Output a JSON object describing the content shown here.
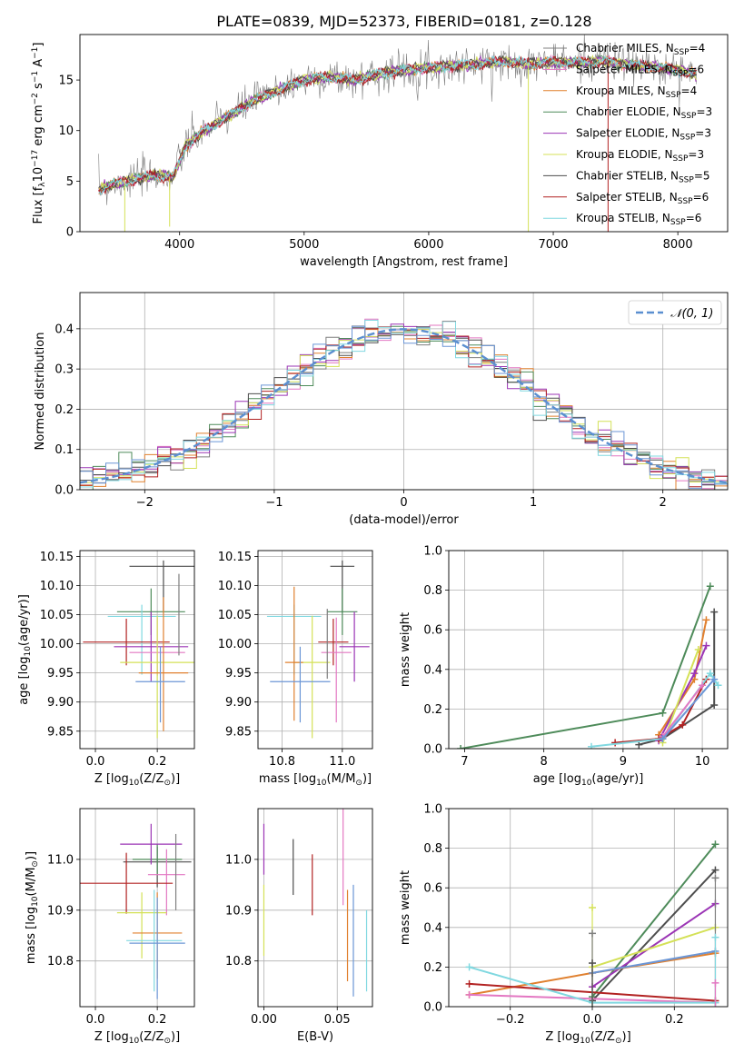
{
  "figure": {
    "title": "PLATE=0839, MJD=52373, FIBERID=0181, z=0.128"
  },
  "colors": {
    "Chabrier MILES": "#7f7f7f",
    "Salpeter MILES": "#e377c2",
    "Kroupa MILES": "#e0802f",
    "Chabrier ELODIE": "#4e8b5a",
    "Salpeter ELODIE": "#9b35b5",
    "Kroupa ELODIE": "#d4e157",
    "Chabrier STELIB": "#4d4d4d",
    "Salpeter STELIB": "#b22222",
    "Kroupa STELIB": "#80d8e0",
    "Chabrier MILES b": "#6b96d6"
  },
  "chart_data": [
    {
      "id": "spectrum",
      "type": "line",
      "title": "PLATE=0839, MJD=52373, FIBERID=0181, z=0.128",
      "xlabel": "wavelength [Angstrom, rest frame]",
      "ylabel": "Flux [f",
      "ylabel_sub": "λ",
      "ylabel_rest": "10",
      "ylabel_exp": "−17",
      "ylabel_tail": " erg cm",
      "ylabel_exp2": "−2",
      "ylabel_tail2": " s",
      "ylabel_exp3": "−1",
      "ylabel_tail3": " A",
      "ylabel_exp4": "−1",
      "ylabel_end": "]",
      "xlim": [
        3200,
        8400
      ],
      "ylim": [
        0,
        19.5
      ],
      "xticks": [
        4000,
        5000,
        6000,
        7000,
        8000
      ],
      "yticks": [
        0,
        5,
        10,
        15
      ],
      "legend_position": "right",
      "legend": [
        {
          "name": "Chabrier MILES",
          "n": "4",
          "color": "#7f7f7f"
        },
        {
          "name": "Salpeter MILES",
          "n": "6",
          "color": "#e377c2"
        },
        {
          "name": "Kroupa MILES",
          "n": "4",
          "color": "#e0802f"
        },
        {
          "name": "Chabrier ELODIE",
          "n": "3",
          "color": "#4e8b5a"
        },
        {
          "name": "Salpeter ELODIE",
          "n": "3",
          "color": "#9b35b5"
        },
        {
          "name": "Kroupa ELODIE",
          "n": "3",
          "color": "#d4e157"
        },
        {
          "name": "Chabrier STELIB",
          "n": "5",
          "color": "#4d4d4d"
        },
        {
          "name": "Salpeter STELIB",
          "n": "6",
          "color": "#b22222"
        },
        {
          "name": "Kroupa STELIB",
          "n": "6",
          "color": "#80d8e0"
        }
      ],
      "nssp_label": "N",
      "nssp_sub": "SSP",
      "continuum": {
        "x": [
          3350,
          3500,
          3650,
          3800,
          3950,
          4050,
          4200,
          4400,
          4600,
          4800,
          5000,
          5200,
          5400,
          5600,
          5800,
          6000,
          6200,
          6400,
          6600,
          6800,
          7000,
          7200,
          7400,
          7600,
          7800,
          8000,
          8150
        ],
        "y": [
          4.2,
          4.8,
          5.2,
          5.6,
          5.4,
          8.5,
          10.0,
          11.5,
          13.0,
          14.0,
          15.0,
          15.3,
          15.0,
          15.6,
          16.0,
          16.2,
          16.4,
          16.6,
          16.8,
          16.6,
          16.8,
          16.7,
          16.9,
          16.5,
          16.3,
          16.0,
          15.5
        ]
      },
      "drops": [
        {
          "x": 3560,
          "y": 0
        },
        {
          "x": 3920,
          "y": 0.5
        },
        {
          "x": 6800,
          "y": 0
        },
        {
          "x": 7440,
          "y": 0
        }
      ]
    },
    {
      "id": "residuals",
      "type": "line",
      "xlabel": "(data-model)/error",
      "ylabel": "Normed distribution",
      "xlim": [
        -2.5,
        2.5
      ],
      "ylim": [
        0,
        0.49
      ],
      "xticks": [
        -2,
        -1,
        0,
        1,
        2
      ],
      "xtick_labels": [
        "−2",
        "−1",
        "0",
        "1",
        "2"
      ],
      "yticks": [
        0.0,
        0.1,
        0.2,
        0.3,
        0.4
      ],
      "ytick_labels": [
        "0.0",
        "0.1",
        "0.2",
        "0.3",
        "0.4"
      ],
      "legend_label": "𝒩(0, 1)",
      "legend_position": "top-right",
      "gaussian": {
        "mean": 0,
        "sigma": 1,
        "color": "#5b8fd0"
      },
      "hist_bin_width": 0.1,
      "hist_series_colors": [
        "#7f7f7f",
        "#e377c2",
        "#e0802f",
        "#4e8b5a",
        "#9b35b5",
        "#d4e157",
        "#4d4d4d",
        "#b22222",
        "#80d8e0",
        "#6b96d6"
      ]
    },
    {
      "id": "age_vs_Z",
      "type": "scatter",
      "xlabel": "Z [log",
      "xlabel_sub": "10",
      "xlabel_rest": "(Z/Z",
      "xlabel_sub2": "⊙",
      "xlabel_end": ")]",
      "ylabel": "age  [log",
      "ylabel_sub": "10",
      "ylabel_rest": "(age/yr)]",
      "xlim": [
        -0.05,
        0.32
      ],
      "ylim": [
        9.82,
        10.16
      ],
      "xticks": [
        0.0,
        0.2
      ],
      "xtick_labels": [
        "0.0",
        "0.2"
      ],
      "yticks": [
        9.85,
        9.9,
        9.95,
        10.0,
        10.05,
        10.1,
        10.15
      ],
      "ytick_labels": [
        "9.85",
        "9.90",
        "9.95",
        "10.00",
        "10.05",
        "10.10",
        "10.15"
      ],
      "points": [
        {
          "x": 0.22,
          "y": 10.133,
          "xerr": 0.11,
          "yerr_lo": 0.08,
          "yerr_hi": 0.01,
          "color": "#4d4d4d"
        },
        {
          "x": 0.18,
          "y": 10.055,
          "xerr": 0.11,
          "yerr_lo": 0.04,
          "yerr_hi": 0.04,
          "color": "#4e8b5a"
        },
        {
          "x": 0.15,
          "y": 10.047,
          "xerr": 0.11,
          "yerr_lo": 0.1,
          "yerr_hi": 0.02,
          "color": "#80d8e0"
        },
        {
          "x": 0.1,
          "y": 10.003,
          "xerr": 0.14,
          "yerr_lo": 0.04,
          "yerr_hi": 0.04,
          "color": "#b22222"
        },
        {
          "x": 0.18,
          "y": 9.995,
          "xerr": 0.12,
          "yerr_lo": 0.06,
          "yerr_hi": 0.06,
          "color": "#9b35b5"
        },
        {
          "x": 0.2,
          "y": 9.985,
          "xerr": 0.09,
          "yerr_lo": 0.04,
          "yerr_hi": 0.06,
          "color": "#e377c2"
        },
        {
          "x": 0.2,
          "y": 9.968,
          "xerr": 0.12,
          "yerr_lo": 0.13,
          "yerr_hi": 0.08,
          "color": "#d4e157"
        },
        {
          "x": 0.22,
          "y": 9.95,
          "xerr": 0.08,
          "yerr_lo": 0.1,
          "yerr_hi": 0.13,
          "color": "#e0802f"
        },
        {
          "x": 0.21,
          "y": 9.935,
          "xerr": 0.08,
          "yerr_lo": 0.07,
          "yerr_hi": 0.06,
          "color": "#6b96d6"
        },
        {
          "x": 0.27,
          "y": 10.04,
          "xerr": 0.0,
          "yerr_lo": 0.06,
          "yerr_hi": 0.08,
          "color": "#7f7f7f"
        }
      ]
    },
    {
      "id": "age_vs_mass",
      "type": "scatter",
      "xlabel": "mass [log",
      "xlabel_sub": "10",
      "xlabel_rest": "(M/M",
      "xlabel_sub2": "⊙",
      "xlabel_end": ")]",
      "xlim": [
        10.72,
        11.1
      ],
      "ylim": [
        9.82,
        10.16
      ],
      "xticks": [
        10.8,
        11.0
      ],
      "xtick_labels": [
        "10.8",
        "11.0"
      ],
      "yticks": [
        9.85,
        9.9,
        9.95,
        10.0,
        10.05,
        10.1,
        10.15
      ],
      "ytick_labels": [
        "9.85",
        "9.90",
        "9.95",
        "10.00",
        "10.05",
        "10.10",
        "10.15"
      ],
      "points": [
        {
          "x": 11.0,
          "y": 10.133,
          "xerr": 0.04,
          "yerr_lo": 0.08,
          "yerr_hi": 0.01,
          "color": "#4d4d4d"
        },
        {
          "x": 11.0,
          "y": 10.055,
          "xerr": 0.05,
          "yerr_lo": 0.04,
          "yerr_hi": 0.04,
          "color": "#4e8b5a"
        },
        {
          "x": 10.84,
          "y": 10.047,
          "xerr": 0.09,
          "yerr_lo": 0.1,
          "yerr_hi": 0.02,
          "color": "#80d8e0"
        },
        {
          "x": 10.97,
          "y": 10.003,
          "xerr": 0.05,
          "yerr_lo": 0.04,
          "yerr_hi": 0.04,
          "color": "#b22222"
        },
        {
          "x": 11.04,
          "y": 9.995,
          "xerr": 0.05,
          "yerr_lo": 0.06,
          "yerr_hi": 0.06,
          "color": "#9b35b5"
        },
        {
          "x": 10.98,
          "y": 9.985,
          "xerr": 0.05,
          "yerr_lo": 0.12,
          "yerr_hi": 0.06,
          "color": "#e377c2"
        },
        {
          "x": 10.9,
          "y": 9.968,
          "xerr": 0.06,
          "yerr_lo": 0.13,
          "yerr_hi": 0.08,
          "color": "#d4e157"
        },
        {
          "x": 10.84,
          "y": 9.968,
          "xerr": 0.03,
          "yerr_lo": 0.1,
          "yerr_hi": 0.13,
          "color": "#e0802f"
        },
        {
          "x": 10.86,
          "y": 9.935,
          "xerr": 0.1,
          "yerr_lo": 0.07,
          "yerr_hi": 0.06,
          "color": "#6b96d6"
        },
        {
          "x": 10.95,
          "y": 10.03,
          "xerr": 0.0,
          "yerr_lo": 0.09,
          "yerr_hi": 0.03,
          "color": "#7f7f7f"
        }
      ]
    },
    {
      "id": "massweight_vs_age",
      "type": "line",
      "xlabel": "age  [log",
      "xlabel_sub": "10",
      "xlabel_rest": "(age/yr)]",
      "ylabel": "mass weight",
      "xlim": [
        6.8,
        10.32
      ],
      "ylim": [
        0,
        1.0
      ],
      "xticks": [
        7,
        8,
        9,
        10
      ],
      "yticks": [
        0.0,
        0.2,
        0.4,
        0.6,
        0.8,
        1.0
      ],
      "ytick_labels": [
        "0.0",
        "0.2",
        "0.4",
        "0.6",
        "0.8",
        "1.0"
      ],
      "series": [
        {
          "color": "#4e8b5a",
          "x": [
            6.95,
            9.5,
            10.1
          ],
          "y": [
            0.0,
            0.18,
            0.82
          ]
        },
        {
          "color": "#4d4d4d",
          "x": [
            9.2,
            9.5,
            10.15,
            10.15
          ],
          "y": [
            0.02,
            0.05,
            0.22,
            0.69
          ]
        },
        {
          "color": "#e0802f",
          "x": [
            9.45,
            9.9,
            10.05
          ],
          "y": [
            0.07,
            0.35,
            0.65
          ]
        },
        {
          "color": "#9b35b5",
          "x": [
            9.45,
            9.9,
            10.05
          ],
          "y": [
            0.04,
            0.38,
            0.52
          ]
        },
        {
          "color": "#d4e157",
          "x": [
            9.5,
            9.95
          ],
          "y": [
            0.03,
            0.5
          ]
        },
        {
          "color": "#b22222",
          "x": [
            8.9,
            9.45,
            9.75,
            10.05
          ],
          "y": [
            0.03,
            0.05,
            0.12,
            0.35
          ]
        },
        {
          "color": "#80d8e0",
          "x": [
            8.6,
            9.5,
            10.1,
            10.2
          ],
          "y": [
            0.01,
            0.05,
            0.38,
            0.32
          ]
        },
        {
          "color": "#e377c2",
          "x": [
            9.5,
            10.0
          ],
          "y": [
            0.06,
            0.32
          ]
        },
        {
          "color": "#6b96d6",
          "x": [
            9.5,
            10.15
          ],
          "y": [
            0.05,
            0.35
          ]
        }
      ]
    },
    {
      "id": "mass_vs_Z",
      "type": "scatter",
      "xlabel": "Z [log",
      "xlabel_sub": "10",
      "xlabel_rest": "(Z/Z",
      "xlabel_sub2": "⊙",
      "xlabel_end": ")]",
      "ylabel": "mass [log",
      "ylabel_sub": "10",
      "ylabel_rest": "(M/M",
      "ylabel_sub2": "⊙",
      "ylabel_end": ")]",
      "xlim": [
        -0.05,
        0.32
      ],
      "ylim": [
        10.71,
        11.1
      ],
      "xticks": [
        0.0,
        0.2
      ],
      "xtick_labels": [
        "0.0",
        "0.2"
      ],
      "yticks": [
        10.8,
        10.9,
        11.0
      ],
      "ytick_labels": [
        "10.8",
        "10.9",
        "11.0"
      ],
      "points": [
        {
          "x": 0.2,
          "y": 10.995,
          "xerr": 0.11,
          "yerr_lo": 0.05,
          "yerr_hi": 0.03,
          "color": "#4d4d4d"
        },
        {
          "x": 0.2,
          "y": 11.0,
          "xerr": 0.08,
          "yerr_lo": 0.03,
          "yerr_hi": 0.03,
          "color": "#4e8b5a"
        },
        {
          "x": 0.18,
          "y": 11.03,
          "xerr": 0.1,
          "yerr_lo": 0.04,
          "yerr_hi": 0.04,
          "color": "#9b35b5"
        },
        {
          "x": 0.23,
          "y": 10.97,
          "xerr": 0.06,
          "yerr_lo": 0.08,
          "yerr_hi": 0.05,
          "color": "#e377c2"
        },
        {
          "x": 0.1,
          "y": 10.953,
          "xerr": 0.15,
          "yerr_lo": 0.06,
          "yerr_hi": 0.06,
          "color": "#b22222"
        },
        {
          "x": 0.15,
          "y": 10.895,
          "xerr": 0.08,
          "yerr_lo": 0.09,
          "yerr_hi": 0.04,
          "color": "#d4e157"
        },
        {
          "x": 0.2,
          "y": 10.855,
          "xerr": 0.08,
          "yerr_lo": 0.09,
          "yerr_hi": 0.08,
          "color": "#e0802f"
        },
        {
          "x": 0.19,
          "y": 10.84,
          "xerr": 0.09,
          "yerr_lo": 0.1,
          "yerr_hi": 0.1,
          "color": "#80d8e0"
        },
        {
          "x": 0.2,
          "y": 10.835,
          "xerr": 0.09,
          "yerr_lo": 0.11,
          "yerr_hi": 0.09,
          "color": "#6b96d6"
        },
        {
          "x": 0.26,
          "y": 10.96,
          "xerr": 0.0,
          "yerr_lo": 0.06,
          "yerr_hi": 0.09,
          "color": "#7f7f7f"
        }
      ]
    },
    {
      "id": "mass_vs_ebv",
      "type": "scatter",
      "xlabel": "E(B-V)",
      "xlim": [
        -0.004,
        0.074
      ],
      "ylim": [
        10.71,
        11.1
      ],
      "xticks": [
        0.0,
        0.05
      ],
      "xtick_labels": [
        "0.00",
        "0.05"
      ],
      "yticks": [
        10.8,
        10.9,
        11.0
      ],
      "ytick_labels": [
        "10.8",
        "10.9",
        "11.0"
      ],
      "points": [
        {
          "x": 0.0,
          "y": 11.02,
          "yerr_lo": 0.05,
          "yerr_hi": 0.05,
          "color": "#9b35b5"
        },
        {
          "x": 0.0,
          "y": 10.88,
          "yerr_lo": 0.07,
          "yerr_hi": 0.07,
          "color": "#d4e157"
        },
        {
          "x": 0.02,
          "y": 11.0,
          "yerr_lo": 0.07,
          "yerr_hi": 0.04,
          "color": "#4d4d4d"
        },
        {
          "x": 0.033,
          "y": 10.95,
          "yerr_lo": 0.06,
          "yerr_hi": 0.06,
          "color": "#b22222"
        },
        {
          "x": 0.054,
          "y": 11.0,
          "yerr_lo": 0.09,
          "yerr_hi": 0.14,
          "color": "#e377c2"
        },
        {
          "x": 0.057,
          "y": 10.85,
          "yerr_lo": 0.09,
          "yerr_hi": 0.09,
          "color": "#e0802f"
        },
        {
          "x": 0.061,
          "y": 10.83,
          "yerr_lo": 0.1,
          "yerr_hi": 0.12,
          "color": "#6b96d6"
        },
        {
          "x": 0.07,
          "y": 10.82,
          "yerr_lo": 0.08,
          "yerr_hi": 0.08,
          "color": "#80d8e0"
        }
      ]
    },
    {
      "id": "massweight_vs_Z",
      "type": "line",
      "xlabel": "Z [log",
      "xlabel_sub": "10",
      "xlabel_rest": "(Z/Z",
      "xlabel_sub2": "⊙",
      "xlabel_end": ")]",
      "ylabel": "mass weight",
      "xlim": [
        -0.35,
        0.33
      ],
      "ylim": [
        0,
        1.0
      ],
      "xticks": [
        -0.2,
        0.0,
        0.2
      ],
      "xtick_labels": [
        "−0.2",
        "0.0",
        "0.2"
      ],
      "yticks": [
        0.0,
        0.2,
        0.4,
        0.6,
        0.8,
        1.0
      ],
      "ytick_labels": [
        "0.0",
        "0.2",
        "0.4",
        "0.6",
        "0.8",
        "1.0"
      ],
      "series": [
        {
          "color": "#4e8b5a",
          "x": [
            0.0,
            0.3
          ],
          "y": [
            0.05,
            0.82
          ]
        },
        {
          "color": "#4d4d4d",
          "x": [
            0.0,
            0.3
          ],
          "y": [
            0.03,
            0.69
          ]
        },
        {
          "color": "#9b35b5",
          "x": [
            0.0,
            0.3
          ],
          "y": [
            0.1,
            0.52
          ]
        },
        {
          "color": "#d4e157",
          "x": [
            0.0,
            0.3
          ],
          "y": [
            0.2,
            0.4
          ]
        },
        {
          "color": "#e0802f",
          "x": [
            -0.3,
            0.0,
            0.3
          ],
          "y": [
            0.06,
            0.17,
            0.27
          ]
        },
        {
          "color": "#6b96d6",
          "x": [
            0.0,
            0.3
          ],
          "y": [
            0.17,
            0.28
          ]
        },
        {
          "color": "#b22222",
          "x": [
            -0.3,
            0.3
          ],
          "y": [
            0.115,
            0.03
          ]
        },
        {
          "color": "#e377c2",
          "x": [
            -0.3,
            0.3
          ],
          "y": [
            0.06,
            0.02
          ]
        },
        {
          "color": "#80d8e0",
          "x": [
            -0.3,
            0.0,
            0.3
          ],
          "y": [
            0.2,
            0.02,
            0.02
          ]
        }
      ],
      "markers": [
        {
          "x": 0.0,
          "y": 0.5,
          "color": "#d4e157"
        },
        {
          "x": 0.0,
          "y": 0.37,
          "color": "#7f7f7f"
        },
        {
          "x": 0.0,
          "y": 0.22,
          "color": "#4d4d4d"
        },
        {
          "x": 0.3,
          "y": 0.65,
          "color": "#7f7f7f"
        },
        {
          "x": 0.3,
          "y": 0.35,
          "color": "#80d8e0"
        },
        {
          "x": 0.3,
          "y": 0.12,
          "color": "#e377c2"
        }
      ]
    }
  ]
}
